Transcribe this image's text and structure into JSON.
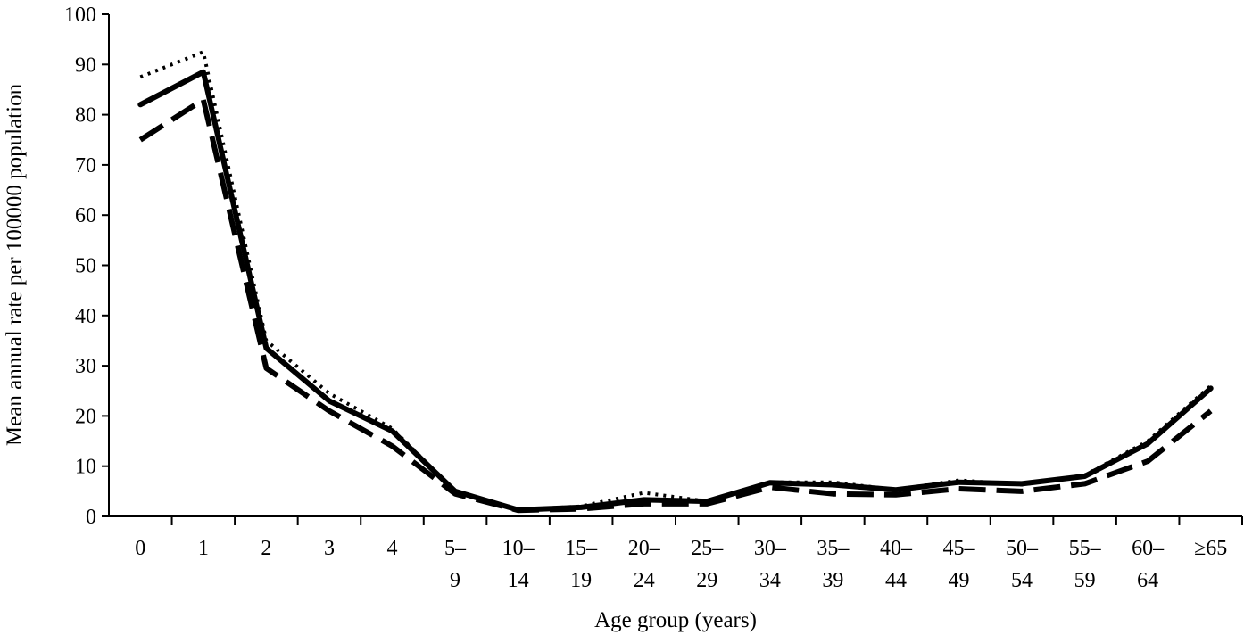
{
  "chart_data": {
    "type": "line",
    "xlabel": "Age group (years)",
    "ylabel": "Mean annual rate per 100000 population",
    "ylim": [
      0,
      100
    ],
    "yticks": [
      "0",
      "10",
      "20",
      "30",
      "40",
      "50",
      "60",
      "70",
      "80",
      "90",
      "100"
    ],
    "grid": false,
    "legend": "none",
    "categories": [
      [
        "0"
      ],
      [
        "1"
      ],
      [
        "2"
      ],
      [
        "3"
      ],
      [
        "4"
      ],
      [
        "5–",
        "9"
      ],
      [
        "10–",
        "14"
      ],
      [
        "15–",
        "19"
      ],
      [
        "20–",
        "24"
      ],
      [
        "25–",
        "29"
      ],
      [
        "30–",
        "34"
      ],
      [
        "35–",
        "39"
      ],
      [
        "40–",
        "44"
      ],
      [
        "45–",
        "49"
      ],
      [
        "50–",
        "54"
      ],
      [
        "55–",
        "59"
      ],
      [
        "60–",
        "64"
      ],
      [
        "≥65"
      ]
    ],
    "series": [
      {
        "style": "solid",
        "color": "#000000",
        "values": [
          82,
          88.5,
          33.5,
          23,
          17,
          5,
          1.3,
          1.8,
          3.3,
          3,
          6.7,
          6.3,
          5.3,
          6.8,
          6.5,
          8,
          14.5,
          25.5
        ]
      },
      {
        "style": "dotted",
        "color": "#000000",
        "values": [
          87.5,
          92.5,
          35,
          24.5,
          17.5,
          5,
          1.3,
          2,
          4.7,
          3,
          6.8,
          6.8,
          5.3,
          7.2,
          6.3,
          8.2,
          15,
          26
        ]
      },
      {
        "style": "dashed",
        "color": "#000000",
        "values": [
          75,
          83,
          29.5,
          21,
          14,
          4.5,
          1.2,
          1.5,
          2.5,
          2.5,
          5.8,
          4.5,
          4.3,
          5.5,
          5,
          6.5,
          11,
          21
        ]
      }
    ]
  }
}
